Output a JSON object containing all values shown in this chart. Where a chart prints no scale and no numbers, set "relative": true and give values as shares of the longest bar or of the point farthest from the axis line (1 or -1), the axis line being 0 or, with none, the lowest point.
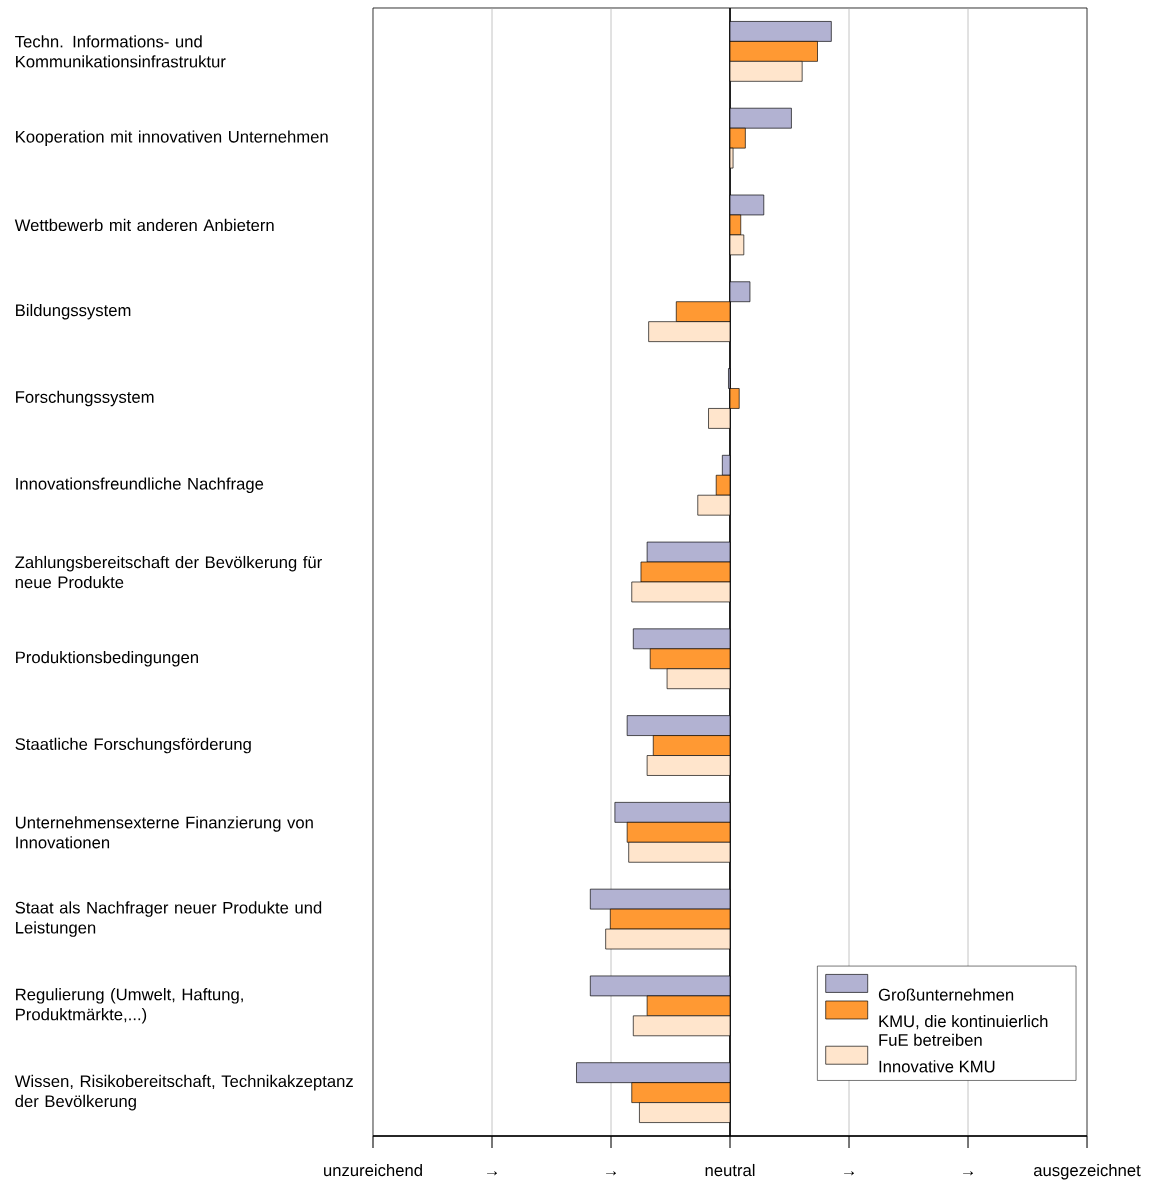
{
  "chart_data": {
    "type": "bar",
    "orientation": "horizontal",
    "relative": true,
    "categories": [
      "Techn. Informations- und Kommunikationsinfrastruktur",
      "Kooperation mit innovativen Unternehmen",
      "Wettbewerb mit anderen Anbietern",
      "Bildungssystem",
      "Forschungssystem",
      "Innovationsfreundliche Nachfrage",
      "Zahlungsbereitschaft der Bevölkerung für neue Produkte",
      "Produktionsbedingungen",
      "Staatliche Forschungsförderung",
      "Unternehmensexterne Finanzierung von Innovationen",
      "Staat als Nachfrager neuer Produkte und Leistungen",
      "Regulierung (Umwelt, Haftung, Produktmärkte,...)",
      "Wissen, Risikobereitschaft, Technikakzeptanz der Bevölkerung"
    ],
    "series": [
      {
        "name": "Großunternehmen",
        "color": "#b2b2d2",
        "values": [
          0.66,
          0.4,
          0.22,
          0.13,
          -0.01,
          -0.05,
          -0.54,
          -0.63,
          -0.67,
          -0.75,
          -0.91,
          -0.91,
          -1
        ]
      },
      {
        "name": "KMU, die kontinuierlich FuE betreiben",
        "color": "#ff9933",
        "values": [
          0.57,
          0.1,
          0.07,
          -0.35,
          0.06,
          -0.09,
          -0.58,
          -0.52,
          -0.5,
          -0.67,
          -0.78,
          -0.54,
          -0.64
        ]
      },
      {
        "name": "Innovative KMU",
        "color": "#ffe5cc",
        "values": [
          0.47,
          0.02,
          0.09,
          -0.53,
          -0.14,
          -0.21,
          -0.64,
          -0.41,
          -0.54,
          -0.66,
          -0.81,
          -0.63,
          -0.59
        ]
      }
    ],
    "annotations": [
      "unzureichend",
      "→",
      "→",
      "neutral",
      "→",
      "→",
      "ausgezeichnet"
    ],
    "ref_lines": [
      {
        "axis": "x",
        "value": -1.5504,
        "color": "#a6a6a6"
      },
      {
        "axis": "x",
        "value": -0.7752,
        "color": "#a6a6a6"
      },
      {
        "axis": "x",
        "value": 0,
        "color": "#000000"
      },
      {
        "axis": "x",
        "value": 0.7752,
        "color": "#a6a6a6"
      },
      {
        "axis": "x",
        "value": 1.5504,
        "color": "#a6a6a6"
      }
    ],
    "legend": "bottom right"
  }
}
